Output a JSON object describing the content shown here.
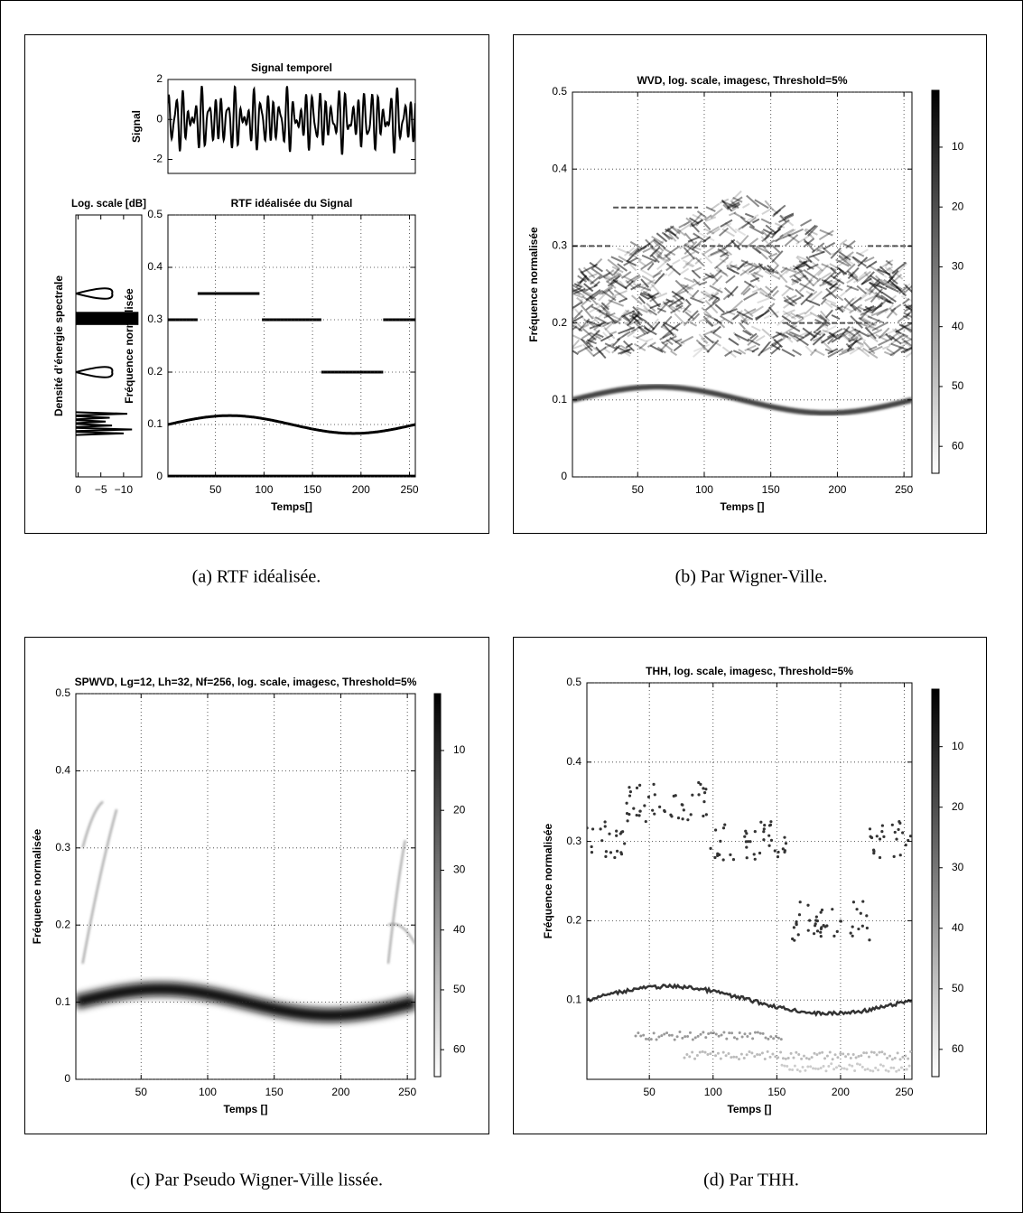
{
  "panels": [
    {
      "caption": "(a) RTF idéalisée.",
      "signal": {
        "title": "Signal temporel",
        "ylabel": "Signal",
        "xlim": [
          1,
          256
        ],
        "ylim": [
          -2.7,
          2
        ],
        "yticks": [
          -2,
          0,
          2
        ]
      },
      "spectrum": {
        "title": "Log. scale [dB]",
        "ylabel": "Densité d’énergie spectrale",
        "xlim": [
          0.5,
          -14
        ],
        "xticks": [
          0,
          {
            "value": -5,
            "label": "−5"
          },
          {
            "value": -10,
            "label": "−10"
          }
        ]
      },
      "tfr": {
        "title": "RTF idéalisée du Signal",
        "xlabel": "Temps[]",
        "ylabel": "Fréquence normalisée",
        "xlim": [
          1,
          256
        ],
        "ylim": [
          0,
          0.5
        ],
        "xticks": [
          50,
          100,
          150,
          200,
          250
        ],
        "yticks": [
          0,
          0.1,
          0.2,
          0.3,
          0.4,
          0.5
        ]
      }
    },
    {
      "caption": "(b) Par Wigner-Ville.",
      "tfr": {
        "title": "WVD, log. scale, imagesc, Threshold=5%",
        "xlabel": "Temps []",
        "ylabel": "Fréquence normalisée",
        "xlim": [
          1,
          256
        ],
        "ylim": [
          0,
          0.5
        ],
        "xticks": [
          50,
          100,
          150,
          200,
          250
        ],
        "yticks": [
          0,
          0.1,
          0.2,
          0.3,
          0.4,
          0.5
        ],
        "colorbar": {
          "lim": [
            0.5,
            64.5
          ],
          "ticks": [
            10,
            20,
            30,
            40,
            50,
            60
          ]
        }
      }
    },
    {
      "caption": "(c) Par Pseudo Wigner-Ville lissée.",
      "tfr": {
        "title": "SPWVD, Lg=12, Lh=32, Nf=256, log. scale, imagesc, Threshold=5%",
        "xlabel": "Temps []",
        "ylabel": "Fréquence normalisée",
        "xlim": [
          1,
          256
        ],
        "ylim": [
          0,
          0.5
        ],
        "xticks": [
          50,
          100,
          150,
          200,
          250
        ],
        "yticks": [
          0,
          0.1,
          0.2,
          0.3,
          0.4,
          0.5
        ],
        "colorbar": {
          "lim": [
            0.5,
            64.5
          ],
          "ticks": [
            10,
            20,
            30,
            40,
            50,
            60
          ]
        }
      }
    },
    {
      "caption": "(d) Par THH.",
      "tfr": {
        "title": "THH, log. scale, imagesc, Threshold=5%",
        "xlabel": "Temps []",
        "ylabel": "Fréquence normalisée",
        "xlim": [
          1,
          256
        ],
        "ylim": [
          0,
          0.5
        ],
        "xticks": [
          50,
          100,
          150,
          200,
          250
        ],
        "yticks": [
          0.1,
          0.2,
          0.3,
          0.4,
          0.5
        ],
        "colorbar": {
          "lim": [
            0.5,
            64.5
          ],
          "ticks": [
            10,
            20,
            30,
            40,
            50,
            60
          ]
        }
      }
    }
  ]
}
